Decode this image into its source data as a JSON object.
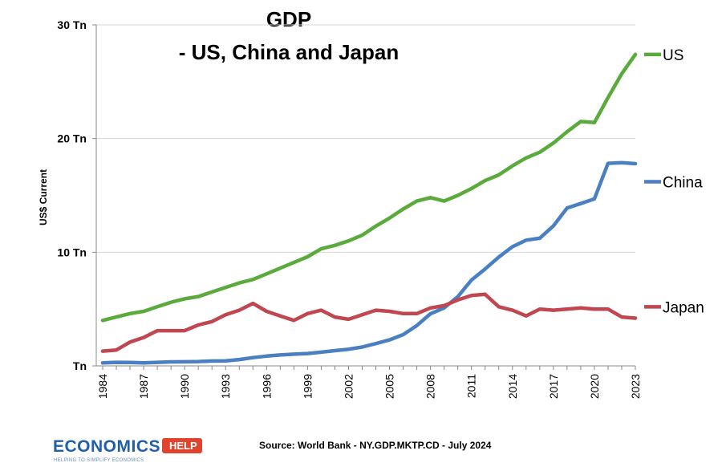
{
  "chart_data": {
    "type": "line",
    "title_line1": "GDP",
    "title_line2": "- US, China and Japan",
    "ylabel": "US$ Current",
    "xlabel": "",
    "ylim": [
      0,
      30
    ],
    "yticks": [
      {
        "value": 0,
        "label": "Tn"
      },
      {
        "value": 10,
        "label": "10 Tn"
      },
      {
        "value": 20,
        "label": "20 Tn"
      },
      {
        "value": 30,
        "label": "30 Tn"
      }
    ],
    "xlim": [
      1984,
      2023
    ],
    "xticks": [
      "1984",
      "1987",
      "1990",
      "1993",
      "1996",
      "1999",
      "2002",
      "2005",
      "2008",
      "2011",
      "2014",
      "2017",
      "2020",
      "2023"
    ],
    "grid": true,
    "x": [
      1984,
      1985,
      1986,
      1987,
      1988,
      1989,
      1990,
      1991,
      1992,
      1993,
      1994,
      1995,
      1996,
      1997,
      1998,
      1999,
      2000,
      2001,
      2002,
      2003,
      2004,
      2005,
      2006,
      2007,
      2008,
      2009,
      2010,
      2011,
      2012,
      2013,
      2014,
      2015,
      2016,
      2017,
      2018,
      2019,
      2020,
      2021,
      2022,
      2023
    ],
    "series": [
      {
        "name": "US",
        "color": "#5aaa3c",
        "values": [
          4.0,
          4.3,
          4.6,
          4.8,
          5.2,
          5.6,
          5.9,
          6.1,
          6.5,
          6.9,
          7.3,
          7.6,
          8.1,
          8.6,
          9.1,
          9.6,
          10.3,
          10.6,
          11.0,
          11.5,
          12.3,
          13.0,
          13.8,
          14.5,
          14.8,
          14.5,
          15.0,
          15.6,
          16.3,
          16.8,
          17.6,
          18.3,
          18.8,
          19.6,
          20.6,
          21.5,
          21.4,
          23.6,
          25.7,
          27.4
        ]
      },
      {
        "name": "China",
        "color": "#4a7fc1",
        "values": [
          0.26,
          0.31,
          0.3,
          0.27,
          0.31,
          0.35,
          0.36,
          0.38,
          0.43,
          0.44,
          0.56,
          0.73,
          0.86,
          0.96,
          1.03,
          1.09,
          1.21,
          1.34,
          1.47,
          1.66,
          1.96,
          2.29,
          2.75,
          3.55,
          4.59,
          5.1,
          6.09,
          7.55,
          8.53,
          9.57,
          10.48,
          11.06,
          11.23,
          12.31,
          13.89,
          14.28,
          14.69,
          17.82,
          17.88,
          17.79
        ]
      },
      {
        "name": "Japan",
        "color": "#c0474f",
        "values": [
          1.3,
          1.4,
          2.1,
          2.5,
          3.1,
          3.1,
          3.1,
          3.6,
          3.9,
          4.5,
          4.9,
          5.5,
          4.8,
          4.4,
          4.0,
          4.6,
          4.9,
          4.3,
          4.1,
          4.5,
          4.9,
          4.8,
          4.6,
          4.6,
          5.1,
          5.3,
          5.8,
          6.2,
          6.3,
          5.2,
          4.9,
          4.4,
          5.0,
          4.9,
          5.0,
          5.1,
          5.0,
          5.0,
          4.3,
          4.2
        ]
      }
    ],
    "legend_placement": "right, at line ends",
    "legend": [
      "US",
      "China",
      "Japan"
    ]
  },
  "footer": {
    "source": "Source: World Bank - NY.GDP.MKTP.CD - July 2024",
    "logo_name": "ECONOMICS",
    "logo_tag": "HELP",
    "logo_tagline": "HELPING TO SIMPLIFY ECONOMICS"
  }
}
